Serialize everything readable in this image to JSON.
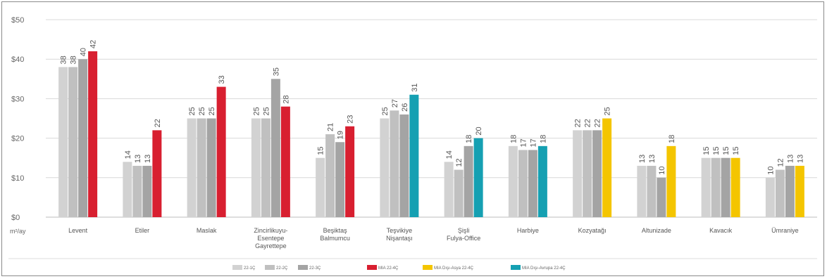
{
  "chart_data": {
    "type": "bar",
    "ylim": [
      0,
      50
    ],
    "yticks": [
      "$0",
      "$10",
      "$20",
      "$30",
      "$40",
      "$50"
    ],
    "ytick_values": [
      0,
      10,
      20,
      30,
      40,
      50
    ],
    "unit_label": "m²/ay",
    "grid": true,
    "legend_position": "bottom",
    "categories": [
      [
        "Levent"
      ],
      [
        "Etiler"
      ],
      [
        "Maslak"
      ],
      [
        "Zincirlikuyu-",
        "Esentepe",
        "Gayrettepe"
      ],
      [
        "Beşiktaş",
        "Balmumcu"
      ],
      [
        "Teşvikiye",
        "Nişantaşı"
      ],
      [
        "Şişli",
        "Fulya-Office"
      ],
      [
        "Harbiye"
      ],
      [
        "Kozyatağı"
      ],
      [
        "Altunizade"
      ],
      [
        "Kavacık"
      ],
      [
        "Ümraniye"
      ]
    ],
    "series": [
      {
        "name": "22-1Ç",
        "color": "#d2d2d2"
      },
      {
        "name": "22-2Ç",
        "color": "#c0c0c0"
      },
      {
        "name": "22-3Ç",
        "color": "#a4a4a4"
      },
      {
        "name": "MIA 22-4Ç",
        "color": "#d81f30"
      },
      {
        "name": "MIA Dışı-Asya 22-4Ç",
        "color": "#f4c500"
      },
      {
        "name": "MIA Dışı-Avrupa 22-4Ç",
        "color": "#15a0b2"
      }
    ],
    "groups": [
      {
        "values": [
          38,
          38,
          40,
          42
        ],
        "last_series": 3
      },
      {
        "values": [
          14,
          13,
          13,
          22
        ],
        "last_series": 3
      },
      {
        "values": [
          25,
          25,
          25,
          33
        ],
        "last_series": 3
      },
      {
        "values": [
          25,
          25,
          35,
          28
        ],
        "last_series": 3
      },
      {
        "values": [
          15,
          21,
          19,
          23
        ],
        "last_series": 3
      },
      {
        "values": [
          25,
          27,
          26,
          31
        ],
        "last_series": 5
      },
      {
        "values": [
          14,
          12,
          18,
          20
        ],
        "last_series": 5
      },
      {
        "values": [
          18,
          17,
          17,
          18
        ],
        "last_series": 5
      },
      {
        "values": [
          22,
          22,
          22,
          25
        ],
        "last_series": 4
      },
      {
        "values": [
          13,
          13,
          10,
          18
        ],
        "last_series": 4
      },
      {
        "values": [
          15,
          15,
          15,
          15
        ],
        "last_series": 4
      },
      {
        "values": [
          10,
          12,
          13,
          13
        ],
        "last_series": 4
      }
    ]
  }
}
